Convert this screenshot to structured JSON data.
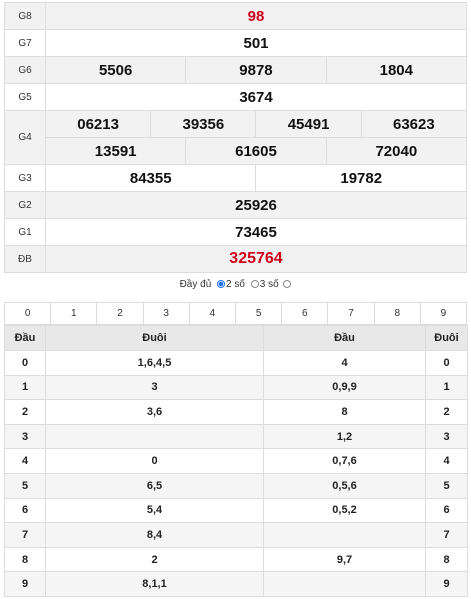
{
  "prizes": {
    "g8": {
      "label": "G8",
      "values": [
        "98"
      ]
    },
    "g7": {
      "label": "G7",
      "values": [
        "501"
      ]
    },
    "g6": {
      "label": "G6",
      "values": [
        "5506",
        "9878",
        "1804"
      ]
    },
    "g5": {
      "label": "G5",
      "values": [
        "3674"
      ]
    },
    "g4": {
      "label": "G4",
      "values": [
        "06213",
        "39356",
        "45491",
        "63623",
        "13591",
        "61605",
        "72040"
      ]
    },
    "g3": {
      "label": "G3",
      "values": [
        "84355",
        "19782"
      ]
    },
    "g2": {
      "label": "G2",
      "values": [
        "25926"
      ]
    },
    "g1": {
      "label": "G1",
      "values": [
        "73465"
      ]
    },
    "db": {
      "label": "ĐB",
      "values": [
        "325764"
      ]
    }
  },
  "filter": {
    "full_label": "Đầy đủ",
    "two_label": "2 số",
    "three_label": "3 số",
    "selected": "2 số"
  },
  "digits": [
    "0",
    "1",
    "2",
    "3",
    "4",
    "5",
    "6",
    "7",
    "8",
    "9"
  ],
  "head_tail": {
    "headers": [
      "Đầu",
      "Đuôi",
      "Đầu",
      "Đuôi"
    ],
    "rows": [
      {
        "d1": "0",
        "t1": "1,6,4,5",
        "h2": "4",
        "d2": "0"
      },
      {
        "d1": "1",
        "t1": "3",
        "h2": "0,9,9",
        "d2": "1"
      },
      {
        "d1": "2",
        "t1": "3,6",
        "h2": "8",
        "d2": "2"
      },
      {
        "d1": "3",
        "t1": "",
        "h2": "1,2",
        "d2": "3"
      },
      {
        "d1": "4",
        "t1": "0",
        "h2": "0,7,6",
        "d2": "4"
      },
      {
        "d1": "5",
        "t1": "6,5",
        "h2": "0,5,6",
        "d2": "5"
      },
      {
        "d1": "6",
        "t1": "5,4",
        "h2": "0,5,2",
        "d2": "6"
      },
      {
        "d1": "7",
        "t1": "8,4",
        "h2": "",
        "d2": "7"
      },
      {
        "d1": "8",
        "t1": "2",
        "h2": "9,7",
        "d2": "8"
      },
      {
        "d1": "9",
        "t1": "8,1,1",
        "h2": "",
        "d2": "9"
      }
    ]
  },
  "colors": {
    "highlight": "#d0021b",
    "radio_selected": "#1a73e8"
  }
}
